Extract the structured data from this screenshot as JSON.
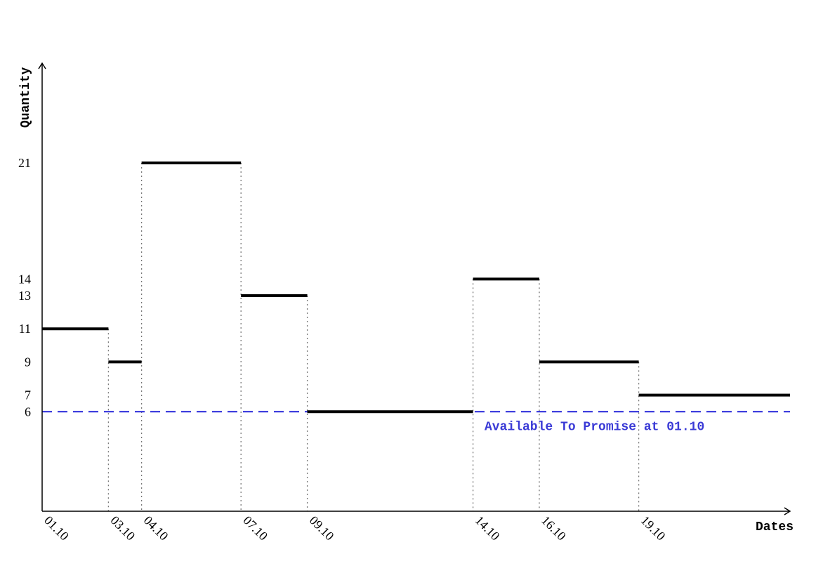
{
  "chart_data": {
    "type": "line",
    "title": "",
    "xlabel": "Dates",
    "ylabel": "Quantity",
    "x_ticks": [
      "01.10",
      "03.10",
      "04.10",
      "07.10",
      "09.10",
      "14.10",
      "16.10",
      "19.10"
    ],
    "y_ticks": [
      6,
      7,
      9,
      11,
      13,
      14,
      21
    ],
    "ylim": [
      0,
      25
    ],
    "grid": false,
    "series": [
      {
        "style": "step",
        "color": "#000000",
        "segments": [
          {
            "from": "01.10",
            "to": "03.10",
            "y": 11
          },
          {
            "from": "03.10",
            "to": "04.10",
            "y": 9
          },
          {
            "from": "04.10",
            "to": "07.10",
            "y": 21
          },
          {
            "from": "07.10",
            "to": "09.10",
            "y": 13
          },
          {
            "from": "09.10",
            "to": "14.10",
            "y": 6
          },
          {
            "from": "14.10",
            "to": "16.10",
            "y": 14
          },
          {
            "from": "16.10",
            "to": "19.10",
            "y": 9
          },
          {
            "from": "19.10",
            "to": "",
            "y": 7
          }
        ]
      }
    ],
    "reference_line": {
      "y": 6,
      "style": "dashed",
      "color": "#2323d9",
      "label": "Available To Promise at 01.10"
    }
  }
}
